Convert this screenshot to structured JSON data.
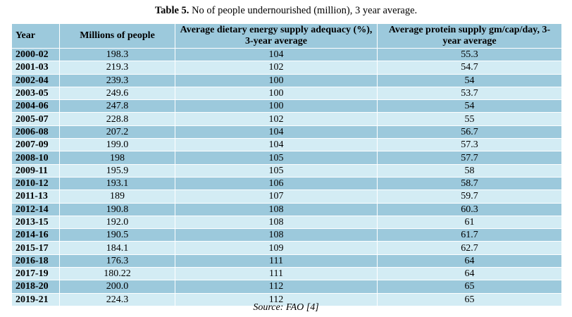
{
  "caption": {
    "lead": "Table 5.",
    "text": " No of people undernourished (million), 3 year average."
  },
  "table": {
    "headers": [
      "Year",
      "Millions of people",
      "Average dietary energy supply adequacy (%), 3-year average",
      "Average protein supply gm/cap/day, 3-year average"
    ],
    "rows": [
      [
        "2000-02",
        "198.3",
        "104",
        "55.3"
      ],
      [
        "2001-03",
        "219.3",
        "102",
        "54.7"
      ],
      [
        "2002-04",
        "239.3",
        "100",
        "54"
      ],
      [
        "2003-05",
        "249.6",
        "100",
        "53.7"
      ],
      [
        "2004-06",
        "247.8",
        "100",
        "54"
      ],
      [
        "2005-07",
        "228.8",
        "102",
        "55"
      ],
      [
        "2006-08",
        "207.2",
        "104",
        "56.7"
      ],
      [
        "2007-09",
        "199.0",
        "104",
        "57.3"
      ],
      [
        "2008-10",
        "198",
        "105",
        "57.7"
      ],
      [
        "2009-11",
        "195.9",
        "105",
        "58"
      ],
      [
        "2010-12",
        "193.1",
        "106",
        "58.7"
      ],
      [
        "2011-13",
        "189",
        "107",
        "59.7"
      ],
      [
        "2012-14",
        "190.8",
        "108",
        "60.3"
      ],
      [
        "2013-15",
        "192.0",
        "108",
        "61"
      ],
      [
        "2014-16",
        "190.5",
        "108",
        "61.7"
      ],
      [
        "2015-17",
        "184.1",
        "109",
        "62.7"
      ],
      [
        "2016-18",
        "176.3",
        "111",
        "64"
      ],
      [
        "2017-19",
        "180.22",
        "111",
        "64"
      ],
      [
        "2018-20",
        "200.0",
        "112",
        "65"
      ],
      [
        "2019-21",
        "224.3",
        "112",
        "65"
      ]
    ]
  },
  "source": "Source: FAO [4]",
  "colors": {
    "header_bg": "#9cc9dc",
    "row_dark": "#9cc9dc",
    "row_light": "#d3ecf4"
  }
}
